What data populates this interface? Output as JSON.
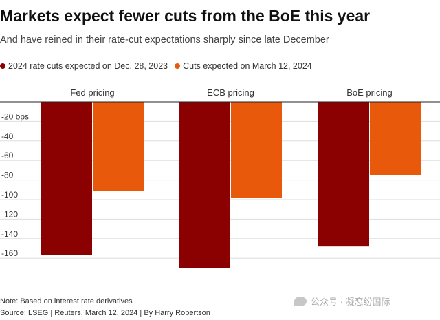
{
  "title": "Markets expect fewer cuts from the BoE this year",
  "subtitle": "And have reined in their rate-cut expectations sharply since late December",
  "legend": [
    {
      "label": "2024 rate cuts expected on Dec. 28, 2023",
      "color": "#8b0000"
    },
    {
      "label": "Cuts expected on March 12, 2024",
      "color": "#e8590c"
    }
  ],
  "note": "Note: Based on interest rate derivatives",
  "source": "Source: LSEG | Reuters, March 12, 2024 | By Harry Robertson",
  "watermark": "公众号 · 凝恋纷国际",
  "chart_data": {
    "type": "bar",
    "categories": [
      "Fed pricing",
      "ECB pricing",
      "BoE pricing"
    ],
    "series": [
      {
        "name": "2024 rate cuts expected on Dec. 28, 2023",
        "color": "#8b0000",
        "values": [
          -157,
          -170,
          -148
        ]
      },
      {
        "name": "Cuts expected on March 12, 2024",
        "color": "#e8590c",
        "values": [
          -91,
          -98,
          -75
        ]
      }
    ],
    "yticks": [
      -20,
      -40,
      -60,
      -80,
      -100,
      -120,
      -140,
      -160
    ],
    "ytick_labels": [
      "-20 bps",
      "-40",
      "-60",
      "-80",
      "-100",
      "-120",
      "-140",
      "-160"
    ],
    "ylim": [
      -170,
      0
    ],
    "grid": true
  }
}
